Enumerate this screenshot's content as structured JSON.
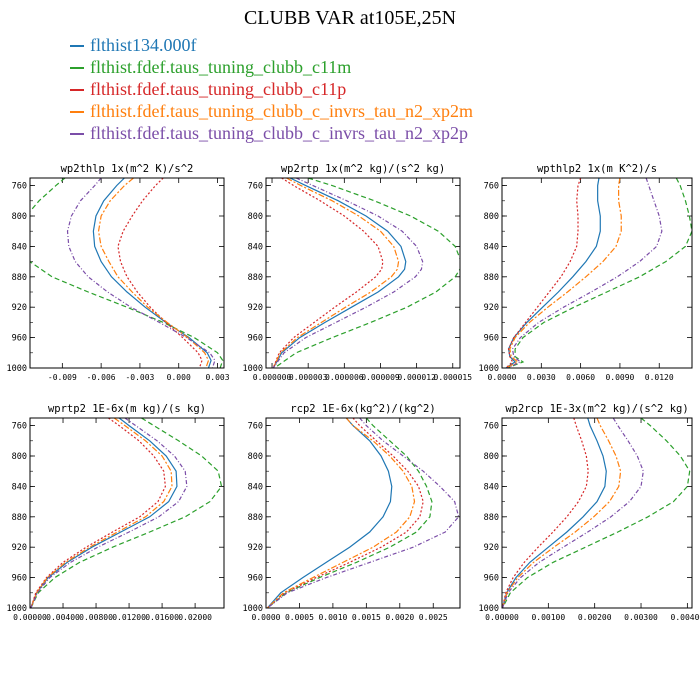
{
  "figure": {
    "title": "CLUBB VAR at105E,25N",
    "colors": {
      "blue": "#1f77b4",
      "green": "#2ca02c",
      "red": "#d62728",
      "orange": "#ff7f0e",
      "purple": "#7b4ea8"
    },
    "legend": [
      {
        "label": "flthist134.000f",
        "color": "#1f77b4"
      },
      {
        "label": "flthist.fdef.taus_tuning_clubb_c11m",
        "color": "#2ca02c"
      },
      {
        "label": "flthist.fdef.taus_tuning_clubb_c11p",
        "color": "#d62728"
      },
      {
        "label": "flthist.fdef.taus_tuning_clubb_c_invrs_tau_n2_xp2m",
        "color": "#ff7f0e"
      },
      {
        "label": "flthist.fdef.taus_tuning_clubb_c_invrs_tau_n2_xp2p",
        "color": "#7b4ea8"
      }
    ]
  },
  "chart_data": [
    {
      "type": "line",
      "title": "wp2thlp  1x(m^2 K)/s^2",
      "xlim": [
        -0.0115,
        0.0035
      ],
      "ylim": [
        1000,
        750
      ],
      "xticks": [
        -0.009,
        -0.006,
        -0.003,
        0.0,
        0.003
      ],
      "xticklabels": [
        "-0.009",
        "-0.006",
        "-0.003",
        "0.000",
        "0.003"
      ],
      "yticks": [
        760,
        800,
        840,
        880,
        920,
        960,
        1000
      ],
      "y": [
        750,
        760,
        780,
        800,
        820,
        840,
        860,
        880,
        900,
        920,
        940,
        960,
        980,
        990,
        1000
      ],
      "series": [
        {
          "color": "#1f77b4",
          "values": [
            -0.0042,
            -0.0048,
            -0.0058,
            -0.0064,
            -0.0066,
            -0.0065,
            -0.006,
            -0.0052,
            -0.004,
            -0.0026,
            -0.001,
            0.0008,
            0.0022,
            0.0025,
            0.0023
          ]
        },
        {
          "color": "#2ca02c",
          "values": [
            -0.0088,
            -0.0095,
            -0.0108,
            -0.0118,
            -0.0123,
            -0.0125,
            -0.0115,
            -0.0098,
            -0.007,
            -0.004,
            -0.0012,
            0.0012,
            0.003,
            0.0034,
            0.0032
          ]
        },
        {
          "color": "#d62728",
          "values": [
            -0.0012,
            -0.0018,
            -0.0028,
            -0.0036,
            -0.0043,
            -0.0047,
            -0.0045,
            -0.004,
            -0.0032,
            -0.0022,
            -0.001,
            0.0003,
            0.0015,
            0.0018,
            0.0016
          ]
        },
        {
          "color": "#ff7f0e",
          "values": [
            -0.0035,
            -0.0042,
            -0.0053,
            -0.006,
            -0.0062,
            -0.006,
            -0.0054,
            -0.0047,
            -0.0036,
            -0.0024,
            -0.0009,
            0.0007,
            0.002,
            0.0023,
            0.0021
          ]
        },
        {
          "color": "#7b4ea8",
          "values": [
            -0.006,
            -0.0065,
            -0.0076,
            -0.0083,
            -0.0086,
            -0.0085,
            -0.008,
            -0.007,
            -0.0055,
            -0.0037,
            -0.0015,
            0.0006,
            0.0024,
            0.0028,
            0.0026
          ]
        }
      ]
    },
    {
      "type": "line",
      "title": "wp2rtp  1x(m^2 kg)/(s^2 kg)",
      "xlim": [
        -5e-07,
        1.56e-05
      ],
      "ylim": [
        1000,
        750
      ],
      "xticks": [
        0.0,
        3e-06,
        6e-06,
        9e-06,
        1.2e-05,
        1.5e-05
      ],
      "xticklabels": [
        "0.000000",
        "0.000003",
        "0.000006",
        "0.000009",
        "0.000012",
        "0.000015"
      ],
      "yticks": [
        760,
        800,
        840,
        880,
        920,
        960,
        1000
      ],
      "y": [
        750,
        760,
        780,
        800,
        820,
        840,
        860,
        870,
        880,
        900,
        920,
        940,
        960,
        980,
        1000
      ],
      "series": [
        {
          "color": "#1f77b4",
          "values": [
            1.5e-06,
            2.8e-06,
            5.5e-06,
            7.8e-06,
            9.6e-06,
            1.07e-05,
            1.11e-05,
            1.1e-05,
            1.05e-05,
            8.8e-06,
            6.6e-06,
            4.4e-06,
            2.3e-06,
            8e-07,
            1e-07
          ]
        },
        {
          "color": "#2ca02c",
          "values": [
            3e-06,
            5e-06,
            8.5e-06,
            1.15e-05,
            1.38e-05,
            1.52e-05,
            1.57e-05,
            1.56e-05,
            1.52e-05,
            1.36e-05,
            1.12e-05,
            8.2e-06,
            5e-06,
            2e-06,
            2e-07
          ]
        },
        {
          "color": "#d62728",
          "values": [
            8e-07,
            1.8e-06,
            4e-06,
            6e-06,
            7.6e-06,
            8.8e-06,
            9.2e-06,
            9.1e-06,
            8.6e-06,
            7e-06,
            5.2e-06,
            3.5e-06,
            1.8e-06,
            6e-07,
            1e-07
          ]
        },
        {
          "color": "#ff7f0e",
          "values": [
            1.2e-06,
            2.4e-06,
            5e-06,
            7.2e-06,
            9e-06,
            1.01e-05,
            1.05e-05,
            1.04e-05,
            9.9e-06,
            8.2e-06,
            6.1e-06,
            4.1e-06,
            2.1e-06,
            7e-07,
            1e-07
          ]
        },
        {
          "color": "#7b4ea8",
          "values": [
            2e-06,
            3.4e-06,
            6.2e-06,
            8.8e-06,
            1.08e-05,
            1.2e-05,
            1.25e-05,
            1.24e-05,
            1.19e-05,
            1.01e-05,
            7.8e-06,
            5.3e-06,
            2.8e-06,
            1e-06,
            1e-07
          ]
        }
      ]
    },
    {
      "type": "line",
      "title": "wpthlp2  1x(m K^2)/s",
      "xlim": [
        0.0,
        0.0145
      ],
      "ylim": [
        1000,
        750
      ],
      "xticks": [
        0.0,
        0.003,
        0.006,
        0.009,
        0.012
      ],
      "xticklabels": [
        "0.0000",
        "0.0030",
        "0.0060",
        "0.0090",
        "0.0120"
      ],
      "yticks": [
        760,
        800,
        840,
        880,
        920,
        960,
        1000
      ],
      "y": [
        750,
        760,
        780,
        800,
        820,
        840,
        860,
        880,
        900,
        920,
        940,
        960,
        975,
        985,
        992,
        1000
      ],
      "series": [
        {
          "color": "#1f77b4",
          "values": [
            0.0074,
            0.0073,
            0.0073,
            0.0075,
            0.0075,
            0.0072,
            0.0064,
            0.0054,
            0.0043,
            0.0031,
            0.0019,
            0.0009,
            0.0005,
            0.0006,
            0.001,
            0.0003
          ]
        },
        {
          "color": "#2ca02c",
          "values": [
            0.0133,
            0.0136,
            0.014,
            0.0143,
            0.0145,
            0.014,
            0.0125,
            0.0105,
            0.008,
            0.0055,
            0.0032,
            0.0016,
            0.001,
            0.001,
            0.0016,
            0.0004
          ]
        },
        {
          "color": "#d62728",
          "values": [
            0.006,
            0.0058,
            0.0057,
            0.0058,
            0.0058,
            0.0057,
            0.0052,
            0.0045,
            0.0036,
            0.0027,
            0.0018,
            0.0009,
            0.0005,
            0.0006,
            0.0008,
            0.0003
          ]
        },
        {
          "color": "#ff7f0e",
          "values": [
            0.009,
            0.0089,
            0.0089,
            0.0091,
            0.0091,
            0.0087,
            0.0077,
            0.0064,
            0.005,
            0.0035,
            0.0021,
            0.001,
            0.0006,
            0.0007,
            0.0012,
            0.0003
          ]
        },
        {
          "color": "#7b4ea8",
          "values": [
            0.011,
            0.0112,
            0.0116,
            0.012,
            0.0122,
            0.0118,
            0.0105,
            0.0088,
            0.0068,
            0.0047,
            0.0028,
            0.0014,
            0.0008,
            0.0009,
            0.0014,
            0.0004
          ]
        }
      ]
    },
    {
      "type": "line",
      "title": "wprtp2  1E-6x(m kg)/(s kg)",
      "xlim": [
        0.0,
        0.0235
      ],
      "ylim": [
        1000,
        750
      ],
      "xticks": [
        0.0,
        0.004,
        0.008,
        0.012,
        0.016,
        0.02
      ],
      "xticklabels": [
        "0.00000",
        "0.00400",
        "0.00800",
        "0.01200",
        "0.01600",
        "0.02000"
      ],
      "yticks": [
        760,
        800,
        840,
        880,
        920,
        960,
        1000
      ],
      "y": [
        750,
        760,
        780,
        800,
        820,
        840,
        860,
        880,
        900,
        920,
        940,
        960,
        980,
        1000
      ],
      "series": [
        {
          "color": "#1f77b4",
          "values": [
            0.0108,
            0.012,
            0.0145,
            0.0165,
            0.0177,
            0.0178,
            0.0168,
            0.0145,
            0.011,
            0.0075,
            0.0045,
            0.0022,
            0.0008,
            0.0001
          ]
        },
        {
          "color": "#2ca02c",
          "values": [
            0.0135,
            0.015,
            0.018,
            0.0208,
            0.0228,
            0.0232,
            0.0218,
            0.0188,
            0.0145,
            0.01,
            0.006,
            0.003,
            0.001,
            0.0001
          ]
        },
        {
          "color": "#d62728",
          "values": [
            0.0095,
            0.0108,
            0.0132,
            0.015,
            0.0162,
            0.0164,
            0.0155,
            0.0133,
            0.01,
            0.0068,
            0.004,
            0.002,
            0.0007,
            0.0001
          ]
        },
        {
          "color": "#ff7f0e",
          "values": [
            0.0102,
            0.0115,
            0.014,
            0.016,
            0.0171,
            0.0172,
            0.0162,
            0.014,
            0.0106,
            0.0072,
            0.0043,
            0.0021,
            0.0008,
            0.0001
          ]
        },
        {
          "color": "#7b4ea8",
          "values": [
            0.0115,
            0.0128,
            0.0154,
            0.0175,
            0.0188,
            0.019,
            0.018,
            0.0156,
            0.012,
            0.0082,
            0.0049,
            0.0024,
            0.0009,
            0.0001
          ]
        }
      ]
    },
    {
      "type": "line",
      "title": "rcp2  1E-6x(kg^2)/(kg^2)",
      "xlim": [
        0.0,
        0.0029
      ],
      "ylim": [
        1000,
        750
      ],
      "xticks": [
        0.0,
        0.0005,
        0.001,
        0.0015,
        0.002,
        0.0025
      ],
      "xticklabels": [
        "0.0000",
        "0.0005",
        "0.0010",
        "0.0015",
        "0.0020",
        "0.0025"
      ],
      "yticks": [
        760,
        800,
        840,
        880,
        920,
        960,
        1000
      ],
      "y": [
        750,
        760,
        780,
        800,
        820,
        840,
        860,
        880,
        900,
        920,
        940,
        960,
        980,
        1000
      ],
      "series": [
        {
          "color": "#1f77b4",
          "values": [
            0.0012,
            0.0013,
            0.00155,
            0.00172,
            0.00183,
            0.00188,
            0.00186,
            0.00175,
            0.00155,
            0.00125,
            0.0009,
            0.00055,
            0.00022,
            2e-05
          ]
        },
        {
          "color": "#2ca02c",
          "values": [
            0.0015,
            0.0016,
            0.00185,
            0.0021,
            0.00228,
            0.0024,
            0.00248,
            0.00245,
            0.00225,
            0.00185,
            0.00135,
            0.0008,
            0.0003,
            2e-05
          ]
        },
        {
          "color": "#d62728",
          "values": [
            0.0013,
            0.0014,
            0.00165,
            0.0019,
            0.00212,
            0.00228,
            0.00235,
            0.0023,
            0.0021,
            0.00172,
            0.00125,
            0.00075,
            0.00028,
            2e-05
          ]
        },
        {
          "color": "#ff7f0e",
          "values": [
            0.0012,
            0.0013,
            0.0016,
            0.00185,
            0.00205,
            0.00218,
            0.00222,
            0.00215,
            0.00195,
            0.0016,
            0.00115,
            0.0007,
            0.00026,
            2e-05
          ]
        },
        {
          "color": "#7b4ea8",
          "values": [
            0.0014,
            0.0015,
            0.00175,
            0.00205,
            0.00235,
            0.0026,
            0.00282,
            0.00288,
            0.00268,
            0.0022,
            0.00155,
            0.0009,
            0.00032,
            2e-05
          ]
        }
      ]
    },
    {
      "type": "line",
      "title": "wp2rcp  1E-3x(m^2 kg)/(s^2 kg)",
      "xlim": [
        0.0,
        0.0041
      ],
      "ylim": [
        1000,
        750
      ],
      "xticks": [
        0.0,
        0.001,
        0.002,
        0.003,
        0.004
      ],
      "xticklabels": [
        "0.00000",
        "0.00100",
        "0.00200",
        "0.00300",
        "0.00400"
      ],
      "yticks": [
        760,
        800,
        840,
        880,
        920,
        960,
        1000
      ],
      "y": [
        750,
        760,
        780,
        800,
        820,
        840,
        860,
        880,
        900,
        920,
        940,
        960,
        980,
        1000
      ],
      "series": [
        {
          "color": "#1f77b4",
          "values": [
            0.00185,
            0.0019,
            0.00205,
            0.00218,
            0.00225,
            0.00222,
            0.00205,
            0.00175,
            0.0014,
            0.001,
            0.0006,
            0.0003,
            0.0001,
            1e-05
          ]
        },
        {
          "color": "#2ca02c",
          "values": [
            0.003,
            0.0032,
            0.00355,
            0.00385,
            0.00405,
            0.004,
            0.0037,
            0.00315,
            0.0025,
            0.0018,
            0.0011,
            0.00055,
            0.00018,
            1e-05
          ]
        },
        {
          "color": "#d62728",
          "values": [
            0.00155,
            0.0016,
            0.00172,
            0.00182,
            0.00186,
            0.00182,
            0.00165,
            0.0014,
            0.0011,
            0.00078,
            0.00048,
            0.00024,
            8e-05,
            1e-05
          ]
        },
        {
          "color": "#ff7f0e",
          "values": [
            0.00205,
            0.00212,
            0.0023,
            0.00246,
            0.00256,
            0.00252,
            0.00232,
            0.00198,
            0.00158,
            0.00112,
            0.00068,
            0.00034,
            0.00011,
            1e-05
          ]
        },
        {
          "color": "#7b4ea8",
          "values": [
            0.0024,
            0.0025,
            0.00272,
            0.00292,
            0.00305,
            0.003,
            0.00275,
            0.00235,
            0.00185,
            0.00132,
            0.0008,
            0.0004,
            0.00013,
            1e-05
          ]
        }
      ]
    }
  ]
}
